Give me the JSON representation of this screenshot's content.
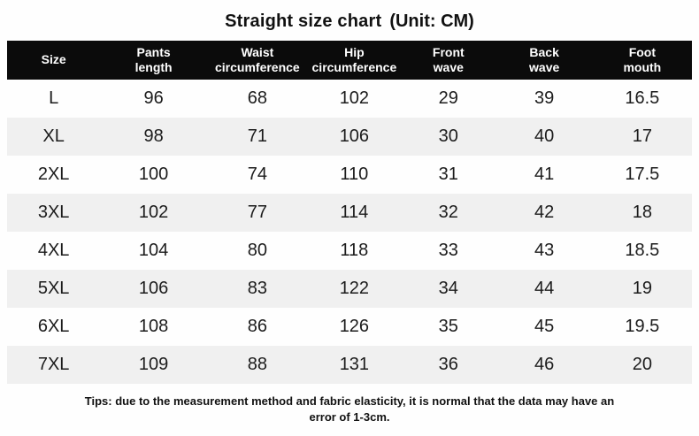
{
  "title": {
    "main": "Straight size chart",
    "unit": "(Unit: CM)"
  },
  "chart_data": {
    "type": "table",
    "title": "Straight size chart",
    "unit_note": "(Unit: CM)",
    "columns": [
      "Size",
      "Pants\nlength",
      "Waist\ncircumference",
      "Hip\ncircumference",
      "Front\nwave",
      "Back\nwave",
      "Foot\nmouth"
    ],
    "rows": [
      [
        "L",
        "96",
        "68",
        "102",
        "29",
        "39",
        "16.5"
      ],
      [
        "XL",
        "98",
        "71",
        "106",
        "30",
        "40",
        "17"
      ],
      [
        "2XL",
        "100",
        "74",
        "110",
        "31",
        "41",
        "17.5"
      ],
      [
        "3XL",
        "102",
        "77",
        "114",
        "32",
        "42",
        "18"
      ],
      [
        "4XL",
        "104",
        "80",
        "118",
        "33",
        "43",
        "18.5"
      ],
      [
        "5XL",
        "106",
        "83",
        "122",
        "34",
        "44",
        "19"
      ],
      [
        "6XL",
        "108",
        "86",
        "126",
        "35",
        "45",
        "19.5"
      ],
      [
        "7XL",
        "109",
        "88",
        "131",
        "36",
        "46",
        "20"
      ]
    ]
  },
  "footer": {
    "tips": "Tips: due to the measurement method and fabric elasticity, it is normal that the data may have an error of 1-3cm."
  },
  "colors": {
    "header_bg": "#0b0b0b",
    "header_text": "#ffffff",
    "row_alt_bg": "#f0f0f0",
    "body_text": "#1c1c1c",
    "page_bg": "#fefefe"
  }
}
